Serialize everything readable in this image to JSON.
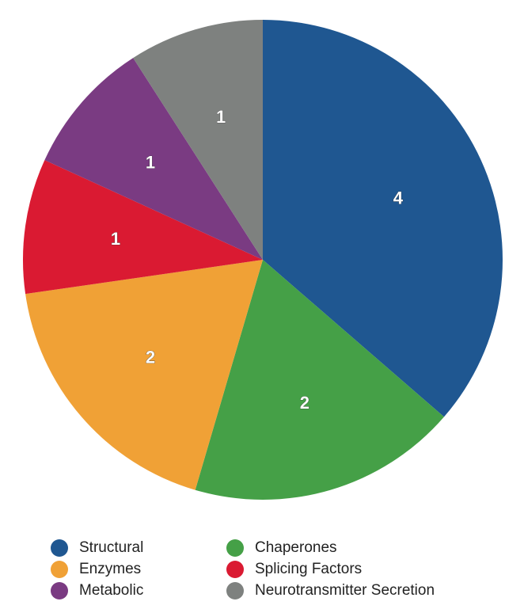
{
  "chart_data": {
    "type": "pie",
    "title": "",
    "start_angle_deg": 0,
    "direction": "clockwise",
    "slices": [
      {
        "label": "Structural",
        "value": 4,
        "color": "#1F5791"
      },
      {
        "label": "Chaperones",
        "value": 2,
        "color": "#45A047"
      },
      {
        "label": "Enzymes",
        "value": 2,
        "color": "#F0A136"
      },
      {
        "label": "Splicing Factors",
        "value": 1,
        "color": "#DA1A32"
      },
      {
        "label": "Metabolic",
        "value": 1,
        "color": "#7A3B82"
      },
      {
        "label": "Neurotransmitter Secretion",
        "value": 1,
        "color": "#7E817F"
      }
    ],
    "data_labels": true,
    "legend_position": "bottom"
  },
  "legend": {
    "items": [
      {
        "label": "Structural",
        "color": "#1F5791"
      },
      {
        "label": "Chaperones",
        "color": "#45A047"
      },
      {
        "label": "Enzymes",
        "color": "#F0A136"
      },
      {
        "label": "Splicing Factors",
        "color": "#DA1A32"
      },
      {
        "label": "Metabolic",
        "color": "#7A3B82"
      },
      {
        "label": "Neurotransmitter Secretion",
        "color": "#7E817F"
      }
    ]
  }
}
